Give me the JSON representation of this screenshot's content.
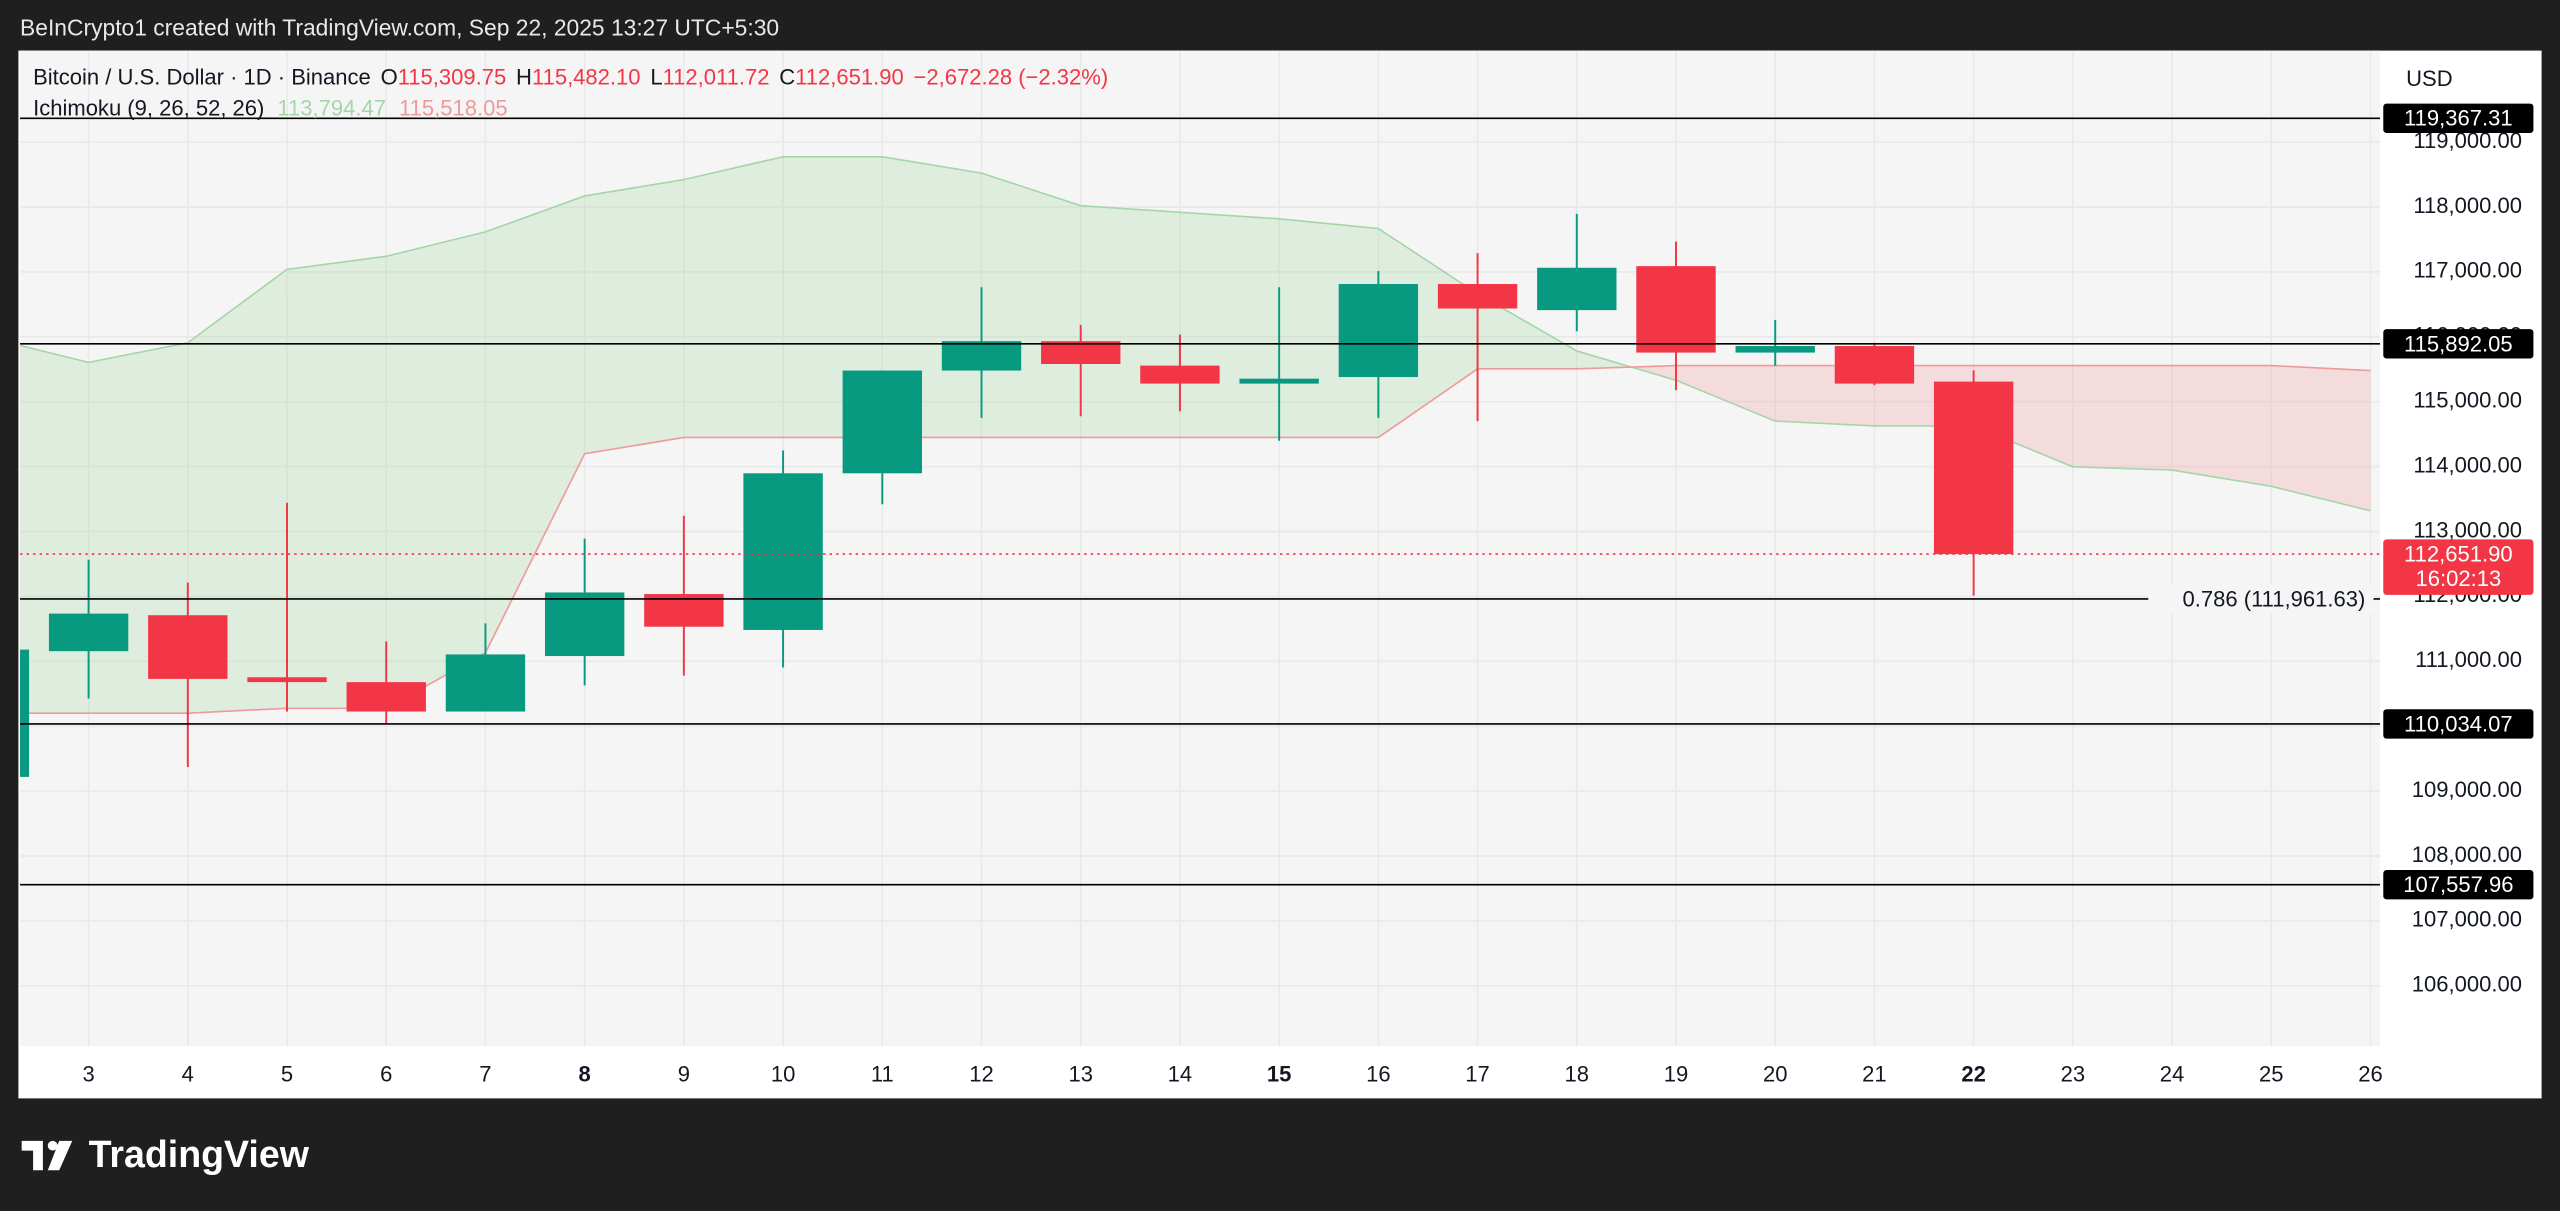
{
  "watermark": "BeInCrypto1 created with TradingView.com, Sep 22, 2025 13:27 UTC+5:30",
  "footer": {
    "brand": "TradingView"
  },
  "chart_data": {
    "type": "candlestick",
    "header": {
      "symbol": "Bitcoin / U.S. Dollar · 1D · Binance",
      "items": [
        {
          "key": "O",
          "value": "115,309.75"
        },
        {
          "key": "H",
          "value": "115,482.10"
        },
        {
          "key": "L",
          "value": "112,011.72"
        },
        {
          "key": "C",
          "value": "112,651.90"
        }
      ],
      "change": "−2,672.28 (−2.32%)"
    },
    "currency": "USD",
    "up_color": "#089981",
    "down_color": "#f23645",
    "x": [
      2,
      3,
      4,
      5,
      6,
      7,
      8,
      9,
      10,
      11,
      12,
      13,
      14,
      15,
      16,
      17,
      18,
      19,
      20,
      21,
      22
    ],
    "open": [
      109219,
      111156,
      111710,
      110754,
      110679,
      110226,
      111081,
      112036,
      111483,
      113897,
      115480,
      115933,
      115556,
      115279,
      115380,
      116813,
      116411,
      117089,
      115757,
      115858,
      115309.75
    ],
    "high": [
      111180,
      112564,
      112212,
      113444,
      111307,
      111584,
      112891,
      113243,
      114249,
      115480,
      116763,
      116184,
      116033,
      116763,
      117014,
      117290,
      117894,
      117466,
      116260,
      115908,
      115482.1
    ],
    "low": [
      109219,
      110427,
      109371,
      110226,
      110050,
      110226,
      110629,
      110779,
      110905,
      113419,
      114751,
      114776,
      114852,
      114399,
      114751,
      114701,
      116084,
      115179,
      115556,
      115254,
      112011.72
    ],
    "close": [
      111180,
      111735,
      110729,
      110679,
      110226,
      111106,
      112061,
      111533,
      113897,
      115480,
      115933,
      115581,
      115279,
      115355,
      116813,
      116436,
      117064,
      115757,
      115858,
      115279,
      112651.9
    ],
    "ichimoku": {
      "name": "Ichimoku (9, 26, 52, 26)",
      "legend_values": [
        "113,794.47",
        "115,518.05"
      ],
      "span_a_color": "#a5d6a7",
      "span_b_color": "#ef9a9a",
      "x": [
        2,
        3,
        4,
        5,
        6,
        7,
        8,
        9,
        10,
        11,
        12,
        13,
        14,
        15,
        16,
        17,
        18,
        19,
        20,
        21,
        22,
        23,
        24,
        25,
        26
      ],
      "span_a": [
        115983,
        115606,
        115908,
        117039,
        117240,
        117617,
        118170,
        118422,
        118774,
        118774,
        118522,
        118020,
        117919,
        117818,
        117668,
        116662,
        115782,
        115330,
        114701,
        114626,
        114626,
        113997,
        113947,
        113696,
        113319
      ],
      "span_b": [
        110201,
        110201,
        110201,
        110276,
        110276,
        111131,
        114198,
        114449,
        114449,
        114449,
        114449,
        114449,
        114449,
        114449,
        114449,
        115506,
        115506,
        115556,
        115556,
        115556,
        115556,
        115556,
        115556,
        115556,
        115480
      ]
    },
    "levels": [
      {
        "value": 119367.31,
        "label": "119,367.31"
      },
      {
        "value": 115892.05,
        "label": "115,892.05"
      },
      {
        "value": 110034.07,
        "label": "110,034.07"
      },
      {
        "value": 107557.96,
        "label": "107,557.96"
      }
    ],
    "fib_level": {
      "value": 111961.63,
      "label": "0.786 (111,961.63)"
    },
    "last_price": {
      "value": 112651.9,
      "label": "112,651.90",
      "countdown": "16:02:13"
    },
    "xlim": [
      2.309,
      26.096
    ],
    "xticks": [
      3,
      4,
      5,
      6,
      7,
      8,
      9,
      10,
      11,
      12,
      13,
      14,
      15,
      16,
      17,
      18,
      19,
      20,
      21,
      22,
      23,
      24,
      25,
      26
    ],
    "bold_xticks": [
      8,
      15,
      22
    ],
    "ylim": [
      105070,
      120410
    ],
    "yticks": [
      {
        "value": 106000,
        "label": "106,000.00"
      },
      {
        "value": 107000,
        "label": "107,000.00"
      },
      {
        "value": 108000,
        "label": "108,000.00"
      },
      {
        "value": 109000,
        "label": "109,000.00"
      },
      {
        "value": 110000,
        "label": "110,000.00"
      },
      {
        "value": 111000,
        "label": "111,000.00"
      },
      {
        "value": 112000,
        "label": "112,000.00"
      },
      {
        "value": 113000,
        "label": "113,000.00"
      },
      {
        "value": 114000,
        "label": "114,000.00"
      },
      {
        "value": 115000,
        "label": "115,000.00"
      },
      {
        "value": 116000,
        "label": "116,000.00"
      },
      {
        "value": 117000,
        "label": "117,000.00"
      },
      {
        "value": 118000,
        "label": "118,000.00"
      },
      {
        "value": 119000,
        "label": "119,000.00"
      }
    ],
    "grid": true
  }
}
